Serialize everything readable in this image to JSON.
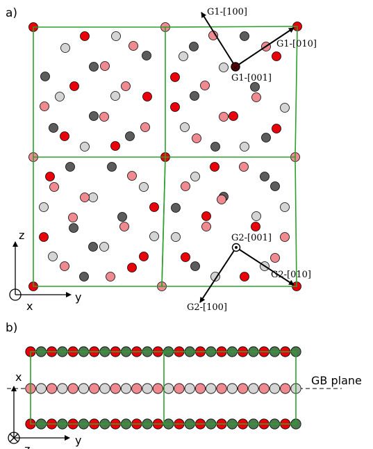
{
  "panel_a": {
    "label": "a)",
    "vectors": {
      "g1_100": "G1-[100]",
      "g1_010": "G1-[010]",
      "g1_001": "G1-[001]",
      "g2_001": "G2-[001]",
      "g2_010": "G2-[010]",
      "g2_100": "G2-[100]"
    },
    "axes": {
      "z": "z",
      "x": "x",
      "y": "y"
    }
  },
  "panel_b": {
    "label": "b)",
    "gb_plane": "GB plane",
    "axes": {
      "x": "x",
      "y": "y",
      "z": "z"
    }
  },
  "colors": {
    "red": "#e8000b",
    "pink": "#ee8a90",
    "lightgray": "#d4d4d4",
    "darkgray": "#5c5c5c",
    "green_atom": "#4a7a4e",
    "frame_green": "#2ca02c"
  }
}
